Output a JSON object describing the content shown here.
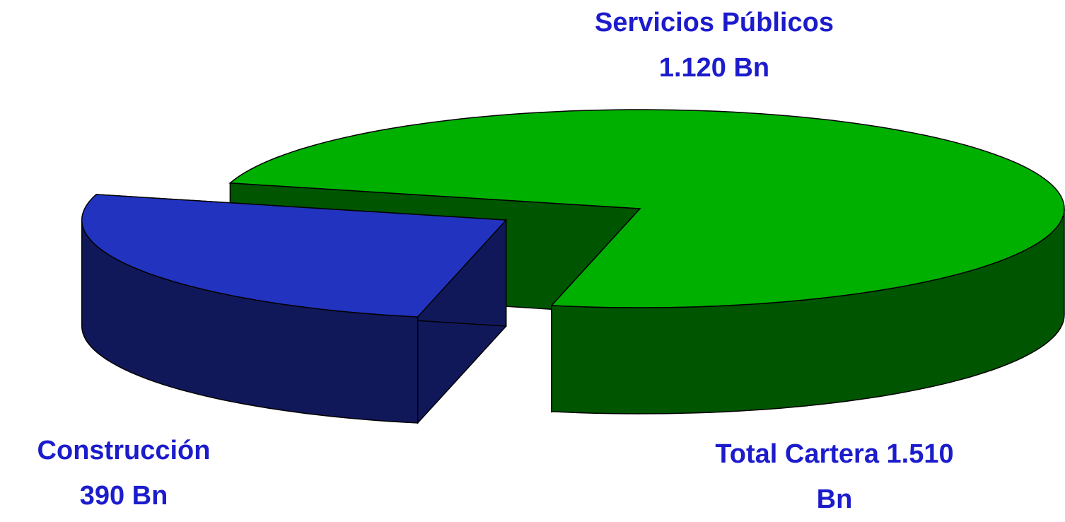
{
  "chart_data": {
    "type": "pie",
    "categories": [
      "Servicios Públicos",
      "Construcción"
    ],
    "values": [
      1120,
      390
    ],
    "value_labels": [
      "1.120 Bn",
      "390 Bn"
    ],
    "colors": [
      "#00b000",
      "#2233c0"
    ],
    "side_colors": [
      "#005500",
      "#11185a"
    ],
    "annotation": "Total Cartera 1.510 Bn"
  }
}
